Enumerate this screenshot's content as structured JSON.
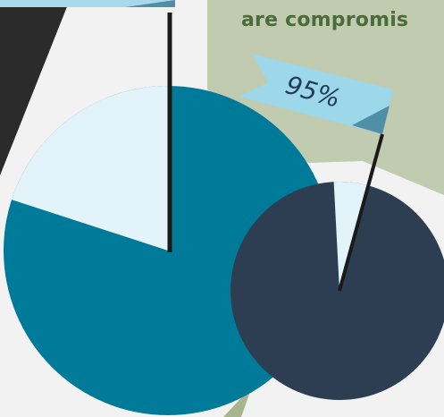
{
  "infographic": {
    "heading_fragment": "are compromis",
    "flag_label": "95%"
  },
  "colors": {
    "background": "#f2f2f2",
    "green_panel": "#c0cbb0",
    "dark_wedge": "#2b2b2b",
    "teal_pie": "#007a99",
    "light_slice": "#e3f3fa",
    "navy_pie": "#2d3e52",
    "flag_fill": "#9dd7ea",
    "flag_fold": "#4f8fa8",
    "pole": "#1a1a1a"
  },
  "pies": [
    {
      "id": "large",
      "highlight_percent": 20
    },
    {
      "id": "small",
      "highlight_percent": 95
    }
  ]
}
